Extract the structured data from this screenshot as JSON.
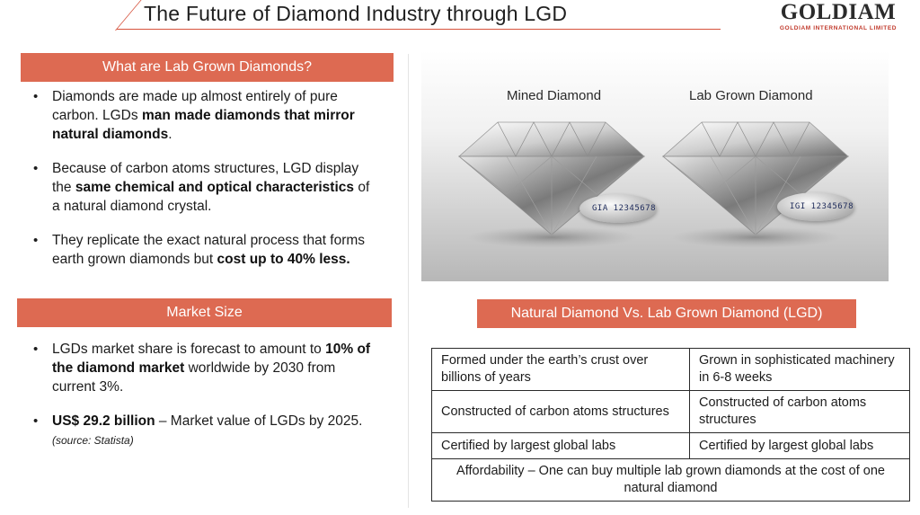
{
  "header": {
    "title": "The Future of Diamond Industry through LGD",
    "logo_main": "GOLDIAM",
    "logo_sub": "GOLDIAM INTERNATIONAL LIMITED"
  },
  "what_are_lgd": {
    "heading": "What are Lab Grown Diamonds?",
    "bullets": [
      {
        "pre": "Diamonds are made up almost entirely of pure carbon. LGDs ",
        "bold": "man made diamonds that mirror natural diamonds",
        "post": "."
      },
      {
        "pre": "Because of carbon atoms structures, LGD display the ",
        "bold": "same chemical and optical characteristics",
        "post": " of a natural diamond crystal."
      },
      {
        "pre": "They replicate the exact natural process that forms earth grown diamonds but ",
        "bold": "cost up to 40% less.",
        "post": ""
      }
    ]
  },
  "market_size": {
    "heading": "Market Size",
    "bullet1": {
      "pre": "LGDs market share is forecast to amount to ",
      "bold": "10% of the diamond market",
      "post": " worldwide by 2030 from current 3%."
    },
    "bullet2": {
      "bold": "US$ 29.2 billion",
      "post": " – Market value of LGDs by 2025. ",
      "source": "(source: Statista)"
    }
  },
  "photo": {
    "label_mined": "Mined Diamond",
    "label_lab": "Lab Grown Diamond",
    "code_mined": "GIA 12345678",
    "code_lab": "IGI 12345678"
  },
  "comparison": {
    "heading": "Natural Diamond Vs. Lab Grown Diamond (LGD)",
    "rows": [
      {
        "natural": "Formed under the earth’s crust over billions of years",
        "lab": "Grown in sophisticated machinery in 6-8 weeks"
      },
      {
        "natural": "Constructed of carbon atoms structures",
        "lab": "Constructed of carbon atoms structures"
      },
      {
        "natural": "Certified by largest global labs",
        "lab": "Certified by largest global labs"
      }
    ],
    "footer": "Affordability – One can buy multiple lab grown diamonds at the cost of one natural diamond"
  }
}
